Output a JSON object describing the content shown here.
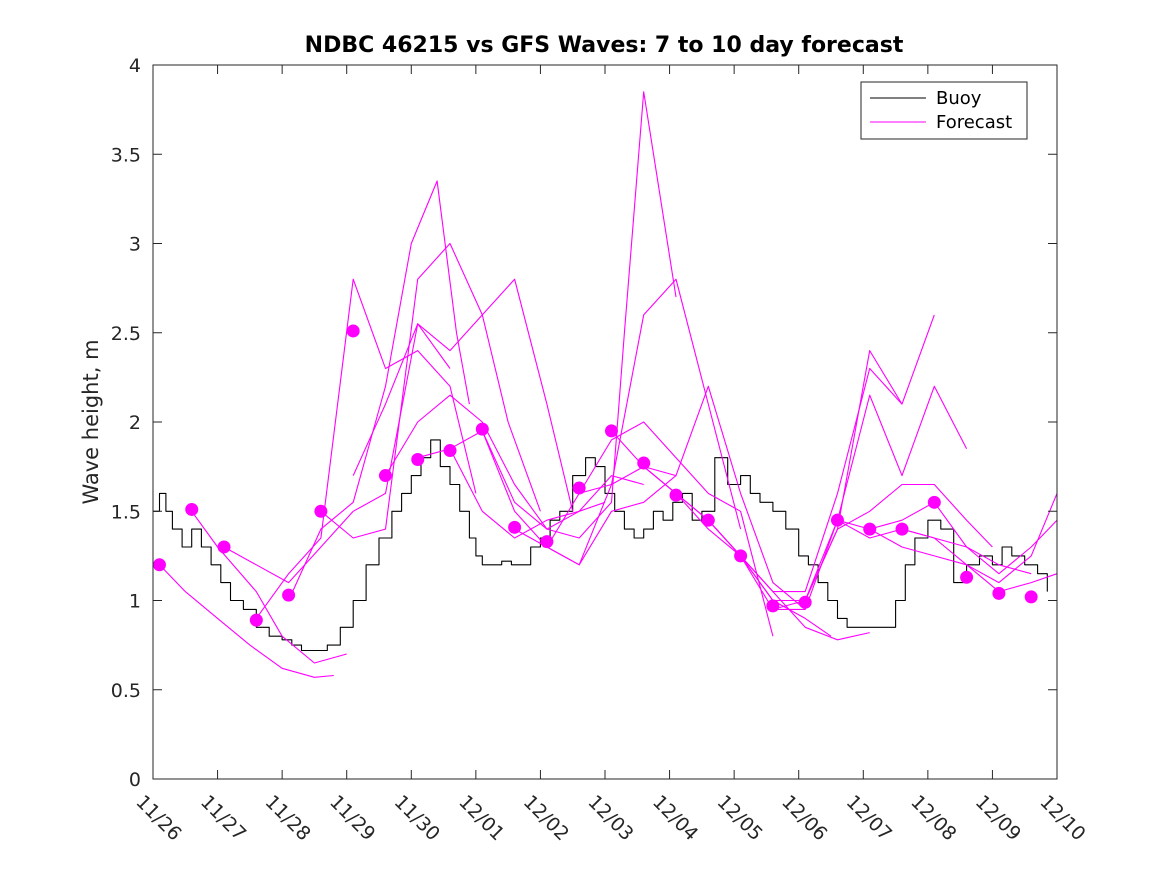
{
  "chart_data": {
    "type": "line",
    "title": "NDBC 46215 vs GFS Waves: 7 to 10 day forecast",
    "xlabel": "",
    "ylabel": "Wave height, m",
    "xlim": [
      0,
      14
    ],
    "ylim": [
      0,
      4
    ],
    "x_unit": "days since 11/26",
    "xtick_values": [
      0,
      1,
      2,
      3,
      4,
      5,
      6,
      7,
      8,
      9,
      10,
      11,
      12,
      13,
      14
    ],
    "xtick_labels": [
      "11/26",
      "11/27",
      "11/28",
      "11/29",
      "11/30",
      "12/01",
      "12/02",
      "12/03",
      "12/04",
      "12/05",
      "12/06",
      "12/07",
      "12/08",
      "12/09",
      "12/10"
    ],
    "ytick_values": [
      0,
      0.5,
      1,
      1.5,
      2,
      2.5,
      3,
      3.5,
      4
    ],
    "ytick_labels": [
      "0",
      "0.5",
      "1",
      "1.5",
      "2",
      "2.5",
      "3",
      "3.5",
      "4"
    ],
    "grid": false,
    "legend": {
      "placement": "top-right",
      "entries": [
        {
          "label": "Buoy",
          "color": "#000000"
        },
        {
          "label": "Forecast",
          "color": "#ff00ff"
        }
      ]
    },
    "series": [
      {
        "name": "Buoy",
        "color": "#000000",
        "x": [
          0,
          0.1,
          0.2,
          0.3,
          0.45,
          0.6,
          0.75,
          0.9,
          1.05,
          1.2,
          1.4,
          1.6,
          1.8,
          2.0,
          2.15,
          2.3,
          2.5,
          2.7,
          2.9,
          3.1,
          3.3,
          3.5,
          3.7,
          3.85,
          4.0,
          4.15,
          4.3,
          4.45,
          4.6,
          4.75,
          4.9,
          5.0,
          5.1,
          5.25,
          5.4,
          5.55,
          5.7,
          5.85,
          6.0,
          6.15,
          6.3,
          6.5,
          6.7,
          6.85,
          7.0,
          7.15,
          7.3,
          7.45,
          7.6,
          7.75,
          7.9,
          8.05,
          8.2,
          8.35,
          8.5,
          8.7,
          8.9,
          9.1,
          9.25,
          9.4,
          9.6,
          9.8,
          10.0,
          10.15,
          10.3,
          10.45,
          10.6,
          10.75,
          10.9,
          11.05,
          11.2,
          11.35,
          11.5,
          11.65,
          11.8,
          12.0,
          12.2,
          12.4,
          12.6,
          12.8,
          13.0,
          13.15,
          13.3,
          13.5,
          13.7,
          13.85
        ],
        "y": [
          1.5,
          1.6,
          1.5,
          1.4,
          1.3,
          1.4,
          1.3,
          1.2,
          1.1,
          1.0,
          0.95,
          0.85,
          0.8,
          0.78,
          0.75,
          0.72,
          0.72,
          0.75,
          0.85,
          1.0,
          1.2,
          1.35,
          1.5,
          1.6,
          1.7,
          1.8,
          1.9,
          1.75,
          1.65,
          1.5,
          1.35,
          1.25,
          1.2,
          1.2,
          1.22,
          1.2,
          1.2,
          1.3,
          1.35,
          1.45,
          1.5,
          1.7,
          1.8,
          1.75,
          1.6,
          1.5,
          1.4,
          1.35,
          1.4,
          1.5,
          1.45,
          1.55,
          1.6,
          1.45,
          1.5,
          1.8,
          1.65,
          1.7,
          1.6,
          1.55,
          1.5,
          1.4,
          1.25,
          1.2,
          1.1,
          1.0,
          0.9,
          0.85,
          0.85,
          0.85,
          0.85,
          0.85,
          1.0,
          1.2,
          1.35,
          1.45,
          1.4,
          1.1,
          1.2,
          1.25,
          1.2,
          1.3,
          1.25,
          1.2,
          1.15,
          1.05
        ]
      },
      {
        "name": "Forecast",
        "color": "#ff00ff",
        "x": [
          0.1,
          0.5,
          1.0,
          1.5,
          2.0,
          2.5,
          2.8
        ],
        "y": [
          1.2,
          1.05,
          0.9,
          0.75,
          0.62,
          0.57,
          0.58
        ]
      },
      {
        "name": "Forecast",
        "color": "#ff00ff",
        "x": [
          0.6,
          1.0,
          1.6,
          2.0,
          2.5,
          3.0
        ],
        "y": [
          1.5,
          1.3,
          1.05,
          0.8,
          0.65,
          0.7
        ]
      },
      {
        "name": "Forecast",
        "color": "#ff00ff",
        "x": [
          1.1,
          1.6,
          2.1,
          2.6,
          3.1,
          3.6,
          4.1,
          4.6
        ],
        "y": [
          1.3,
          1.2,
          1.1,
          1.3,
          1.5,
          1.6,
          2.55,
          2.3
        ]
      },
      {
        "name": "Forecast",
        "color": "#ff00ff",
        "x": [
          1.6,
          2.1,
          2.6,
          3.1,
          3.6,
          4.1,
          4.6,
          5.0
        ],
        "y": [
          0.9,
          1.15,
          1.35,
          2.8,
          2.3,
          2.4,
          2.2,
          1.6
        ]
      },
      {
        "name": "Forecast",
        "color": "#ff00ff",
        "x": [
          2.1,
          2.6,
          3.1,
          3.6,
          4.0,
          4.4,
          4.7,
          4.9
        ],
        "y": [
          1.0,
          1.4,
          1.55,
          2.2,
          3.0,
          3.35,
          2.5,
          2.1
        ]
      },
      {
        "name": "Forecast",
        "color": "#ff00ff",
        "x": [
          2.6,
          3.1,
          3.6,
          4.1,
          4.6,
          5.1,
          5.5,
          6.0
        ],
        "y": [
          1.5,
          1.35,
          1.4,
          2.8,
          3.0,
          2.6,
          2.0,
          1.5
        ]
      },
      {
        "name": "Forecast",
        "color": "#ff00ff",
        "x": [
          3.1,
          3.6,
          4.1,
          4.6,
          5.1,
          5.6,
          6.1,
          6.5
        ],
        "y": [
          1.7,
          2.1,
          2.55,
          2.4,
          2.6,
          2.8,
          2.1,
          1.5
        ]
      },
      {
        "name": "Forecast",
        "color": "#ff00ff",
        "x": [
          3.6,
          4.1,
          4.6,
          5.1,
          5.6,
          6.1,
          6.6,
          7.0
        ],
        "y": [
          1.7,
          2.0,
          2.15,
          2.0,
          1.65,
          1.4,
          1.5,
          1.55
        ]
      },
      {
        "name": "Forecast",
        "color": "#ff00ff",
        "x": [
          4.1,
          4.6,
          5.1,
          5.6,
          6.1,
          6.6,
          7.1,
          7.6
        ],
        "y": [
          1.8,
          1.85,
          1.5,
          1.35,
          1.45,
          1.5,
          1.7,
          1.65
        ]
      },
      {
        "name": "Forecast",
        "color": "#ff00ff",
        "x": [
          4.6,
          5.1,
          5.6,
          6.1,
          6.6,
          7.1,
          7.6,
          8.1
        ],
        "y": [
          1.85,
          1.95,
          1.5,
          1.3,
          1.2,
          1.5,
          1.55,
          1.7
        ]
      },
      {
        "name": "Forecast",
        "color": "#ff00ff",
        "x": [
          5.1,
          5.6,
          6.1,
          6.6,
          7.1,
          7.3,
          7.6,
          8.1
        ],
        "y": [
          1.95,
          1.55,
          1.4,
          1.35,
          1.55,
          2.5,
          3.85,
          2.7
        ]
      },
      {
        "name": "Forecast",
        "color": "#ff00ff",
        "x": [
          5.6,
          6.1,
          6.6,
          7.1,
          7.6,
          8.1,
          8.6,
          9.1
        ],
        "y": [
          1.4,
          1.3,
          1.2,
          1.65,
          2.6,
          2.8,
          2.1,
          1.4
        ]
      },
      {
        "name": "Forecast",
        "color": "#ff00ff",
        "x": [
          6.1,
          6.6,
          7.1,
          7.6,
          8.1,
          8.6,
          9.1,
          9.6
        ],
        "y": [
          1.3,
          1.6,
          1.9,
          2.0,
          1.8,
          1.6,
          1.5,
          0.8
        ]
      },
      {
        "name": "Forecast",
        "color": "#ff00ff",
        "x": [
          6.6,
          7.1,
          7.6,
          8.1,
          8.6,
          9.1,
          9.6,
          10.1
        ],
        "y": [
          1.6,
          1.65,
          1.75,
          1.7,
          2.2,
          1.6,
          1.1,
          0.95
        ]
      },
      {
        "name": "Forecast",
        "color": "#ff00ff",
        "x": [
          7.1,
          7.6,
          8.1,
          8.6,
          9.1,
          9.6,
          10.1,
          10.5
        ],
        "y": [
          1.95,
          1.75,
          1.6,
          1.4,
          1.25,
          1.0,
          0.9,
          0.8
        ]
      },
      {
        "name": "Forecast",
        "color": "#ff00ff",
        "x": [
          7.6,
          8.1,
          8.6,
          9.1,
          9.6,
          10.1,
          10.6,
          11.1
        ],
        "y": [
          1.75,
          1.6,
          1.45,
          1.25,
          1.05,
          0.85,
          0.78,
          0.82
        ]
      },
      {
        "name": "Forecast",
        "color": "#ff00ff",
        "x": [
          8.1,
          8.6,
          9.1,
          9.6,
          10.1,
          10.6,
          11.1,
          11.6
        ],
        "y": [
          1.6,
          1.45,
          1.25,
          1.05,
          1.05,
          1.6,
          2.3,
          2.1
        ]
      },
      {
        "name": "Forecast",
        "color": "#ff00ff",
        "x": [
          8.6,
          9.1,
          9.6,
          10.1,
          10.6,
          11.1,
          11.6,
          12.1
        ],
        "y": [
          1.45,
          1.25,
          1.0,
          1.0,
          1.4,
          2.4,
          2.1,
          2.6
        ]
      },
      {
        "name": "Forecast",
        "color": "#ff00ff",
        "x": [
          9.1,
          9.6,
          10.1,
          10.6,
          11.1,
          11.6,
          12.1,
          12.6
        ],
        "y": [
          1.25,
          0.95,
          0.95,
          1.45,
          2.15,
          1.7,
          2.2,
          1.85
        ]
      },
      {
        "name": "Forecast",
        "color": "#ff00ff",
        "x": [
          9.6,
          10.1,
          10.6,
          11.1,
          11.6,
          12.1,
          12.6,
          13.0
        ],
        "y": [
          0.95,
          1.0,
          1.4,
          1.5,
          1.65,
          1.65,
          1.45,
          1.3
        ]
      },
      {
        "name": "Forecast",
        "color": "#ff00ff",
        "x": [
          10.1,
          10.6,
          11.1,
          11.6,
          12.1,
          12.6,
          13.1,
          13.6
        ],
        "y": [
          1.0,
          1.45,
          1.4,
          1.45,
          1.55,
          1.3,
          1.2,
          1.15
        ]
      },
      {
        "name": "Forecast",
        "color": "#ff00ff",
        "x": [
          10.6,
          11.1,
          11.6,
          12.1,
          12.6,
          13.1,
          13.6,
          14.0
        ],
        "y": [
          1.45,
          1.35,
          1.4,
          1.35,
          1.3,
          1.15,
          1.3,
          1.45
        ]
      },
      {
        "name": "Forecast",
        "color": "#ff00ff",
        "x": [
          11.1,
          11.6,
          12.1,
          12.6,
          13.1,
          13.6,
          14.0
        ],
        "y": [
          1.4,
          1.3,
          1.25,
          1.2,
          1.1,
          1.25,
          1.6
        ]
      },
      {
        "name": "Forecast",
        "color": "#ff00ff",
        "x": [
          11.6,
          12.1,
          12.6,
          13.1,
          13.6,
          14.0
        ],
        "y": [
          1.4,
          1.35,
          1.2,
          1.05,
          1.1,
          1.15
        ]
      }
    ],
    "markers": {
      "name": "Forecast verification points",
      "color": "#ff00ff",
      "x": [
        0.1,
        0.6,
        1.1,
        1.6,
        2.1,
        2.6,
        3.1,
        3.6,
        4.1,
        4.6,
        5.1,
        5.6,
        6.1,
        6.6,
        7.1,
        7.6,
        8.1,
        8.6,
        9.1,
        9.6,
        10.1,
        10.6,
        11.1,
        11.6,
        12.1,
        12.6,
        13.1,
        13.6
      ],
      "y": [
        1.2,
        1.51,
        1.3,
        0.89,
        1.03,
        1.5,
        2.51,
        1.7,
        1.79,
        1.84,
        1.96,
        1.41,
        1.33,
        1.63,
        1.95,
        1.77,
        1.59,
        1.45,
        1.25,
        0.97,
        0.99,
        1.45,
        1.4,
        1.4,
        1.55,
        1.13,
        1.04,
        1.02
      ]
    }
  }
}
